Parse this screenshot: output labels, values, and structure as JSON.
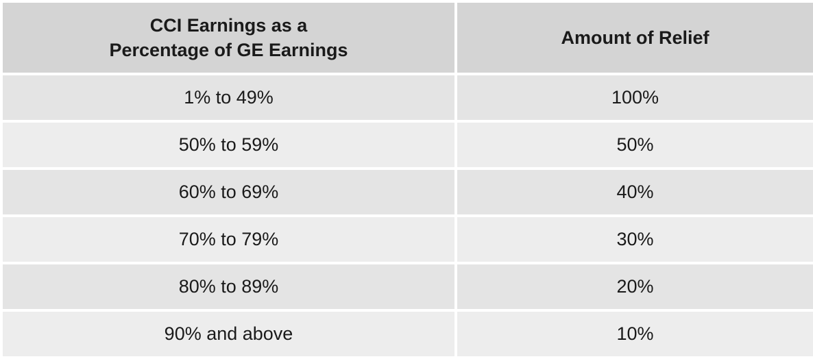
{
  "table": {
    "headers": {
      "col1_line1": "CCI Earnings as a",
      "col1_line2": "Percentage of GE Earnings",
      "col2": "Amount of Relief"
    },
    "rows": [
      {
        "range": "1% to 49%",
        "relief": "100%"
      },
      {
        "range": "50% to 59%",
        "relief": "50%"
      },
      {
        "range": "60% to 69%",
        "relief": "40%"
      },
      {
        "range": "70% to 79%",
        "relief": "30%"
      },
      {
        "range": "80% to 89%",
        "relief": "20%"
      },
      {
        "range": "90% and above",
        "relief": "10%"
      }
    ]
  }
}
